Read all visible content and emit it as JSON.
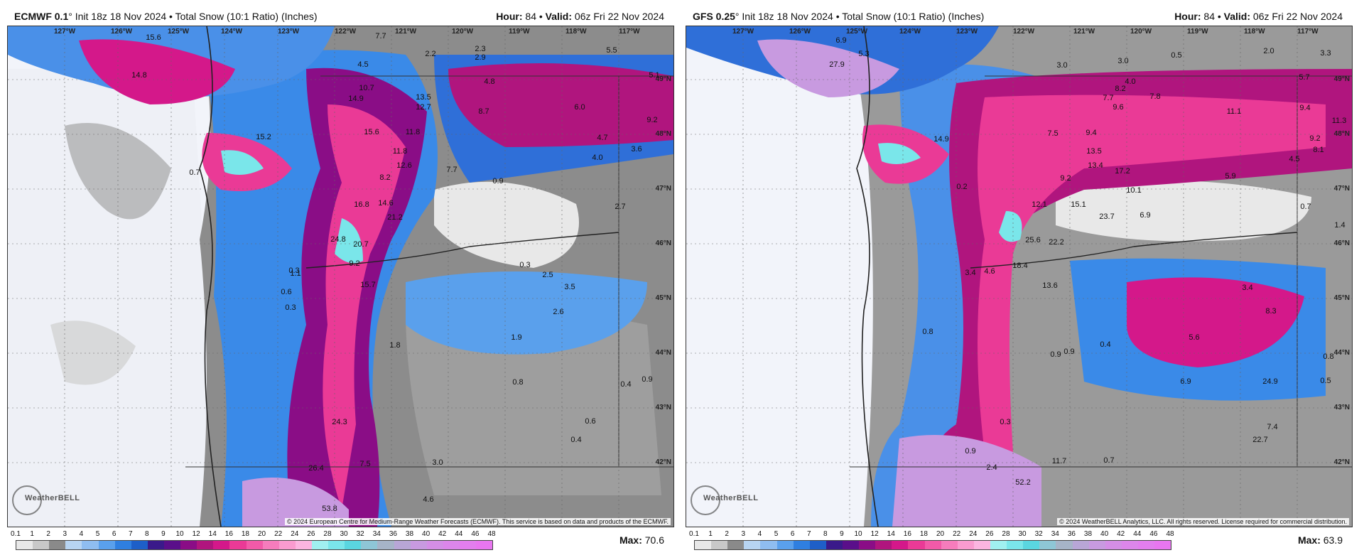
{
  "colorbar": {
    "ticks": [
      "0.1",
      "1",
      "2",
      "3",
      "4",
      "5",
      "6",
      "7",
      "8",
      "9",
      "10",
      "12",
      "14",
      "16",
      "18",
      "20",
      "22",
      "24",
      "26",
      "28",
      "30",
      "32",
      "34",
      "36",
      "38",
      "40",
      "42",
      "44",
      "46",
      "48"
    ],
    "colors": [
      "#e8e8e8",
      "#c8c8c8",
      "#8a8a8a",
      "#b7d4f2",
      "#8fbdf0",
      "#5aa0ec",
      "#2f7fe0",
      "#1e5fc8",
      "#3a1a8a",
      "#5a0f8a",
      "#8a0d86",
      "#b0157e",
      "#d4188a",
      "#ea3a96",
      "#f25aa8",
      "#f67cbc",
      "#f99bcf",
      "#fbb5e0",
      "#a0f0f0",
      "#7ae6ea",
      "#5ad6e0",
      "#8ec6d6",
      "#a6b4c8",
      "#b8a6d6",
      "#c89ae0",
      "#d48ee6",
      "#dc86ea",
      "#e27eee",
      "#e876f0"
    ]
  },
  "panels": [
    {
      "model": "ECMWF 0.1",
      "init": "° Init 18z 18 Nov 2024 • Total Snow (10:1 Ratio) (Inches)",
      "hour_label": "Hour:",
      "hour": "84",
      "valid_label": "Valid:",
      "valid": "06z Fri 22 Nov 2024",
      "max_label": "Max:",
      "max": "70.6",
      "credit": "© 2024 European Centre for Medium-Range Weather Forecasts (ECMWF). This service is based on data and products of the ECMWF.",
      "logo": "WeatherBELL",
      "lon_labels": [
        "127°W",
        "126°W",
        "125°W",
        "124°W",
        "123°W",
        "122°W",
        "121°W",
        "120°W",
        "119°W",
        "118°W",
        "117°W"
      ],
      "lat_labels": [
        "49°N",
        "48°N",
        "47°N",
        "46°N",
        "45°N",
        "44°N",
        "43°N",
        "42°N"
      ],
      "values": [
        "15.6",
        "14.8",
        "7.7",
        "4.5",
        "2.2",
        "2.3",
        "2.9",
        "5.5",
        "5.1",
        "10.7",
        "14.9",
        "13.5",
        "12.7",
        "4.8",
        "8.7",
        "6.0",
        "9.2",
        "15.2",
        "15.6",
        "11.8",
        "4.7",
        "3.6",
        "11.8",
        "12.6",
        "8.2",
        "7.7",
        "4.0",
        "0.7",
        "14.6",
        "16.8",
        "21.2",
        "2.7",
        "0.9",
        "24.8",
        "20.7",
        "9.2",
        "15.7",
        "0.3",
        "2.5",
        "3.5",
        "0.3",
        "1.1",
        "0.6",
        "0.3",
        "2.6",
        "1.9",
        "1.8",
        "0.8",
        "0.4",
        "0.9",
        "24.3",
        "0.6",
        "0.4",
        "26.4",
        "7.5",
        "3.0",
        "4.6",
        "53.8"
      ]
    },
    {
      "model": "GFS 0.25",
      "init": "° Init 18z 18 Nov 2024 • Total Snow (10:1 Ratio) (Inches)",
      "hour_label": "Hour:",
      "hour": "84",
      "valid_label": "Valid:",
      "valid": "06z Fri 22 Nov 2024",
      "max_label": "Max:",
      "max": "63.9",
      "credit": "© 2024 WeatherBELL Analytics, LLC. All rights reserved. License required for commercial distribution.",
      "logo": "WeatherBELL",
      "lon_labels": [
        "127°W",
        "126°W",
        "125°W",
        "124°W",
        "123°W",
        "122°W",
        "121°W",
        "120°W",
        "119°W",
        "118°W",
        "117°W"
      ],
      "lat_labels": [
        "49°N",
        "48°N",
        "47°N",
        "46°N",
        "45°N",
        "44°N",
        "43°N",
        "42°N"
      ],
      "values": [
        "6.9",
        "27.9",
        "5.3",
        "3.0",
        "3.0",
        "0.5",
        "2.0",
        "3.3",
        "5.7",
        "4.0",
        "8.2",
        "7.7",
        "7.8",
        "9.6",
        "11.1",
        "9.4",
        "11.3",
        "14.9",
        "7.5",
        "9.4",
        "9.2",
        "8.1",
        "4.5",
        "13.5",
        "13.4",
        "17.2",
        "5.9",
        "9.2",
        "10.1",
        "0.2",
        "12.1",
        "15.1",
        "23.7",
        "6.9",
        "0.7",
        "25.6",
        "22.2",
        "1.4",
        "18.4",
        "3.4",
        "4.6",
        "13.6",
        "3.4",
        "8.3",
        "5.6",
        "0.4",
        "0.9",
        "0.8",
        "6.9",
        "0.9",
        "0.8",
        "24.9",
        "0.5",
        "0.3",
        "7.4",
        "22.7",
        "0.9",
        "2.4",
        "11.7",
        "0.7",
        "52.2"
      ]
    }
  ]
}
